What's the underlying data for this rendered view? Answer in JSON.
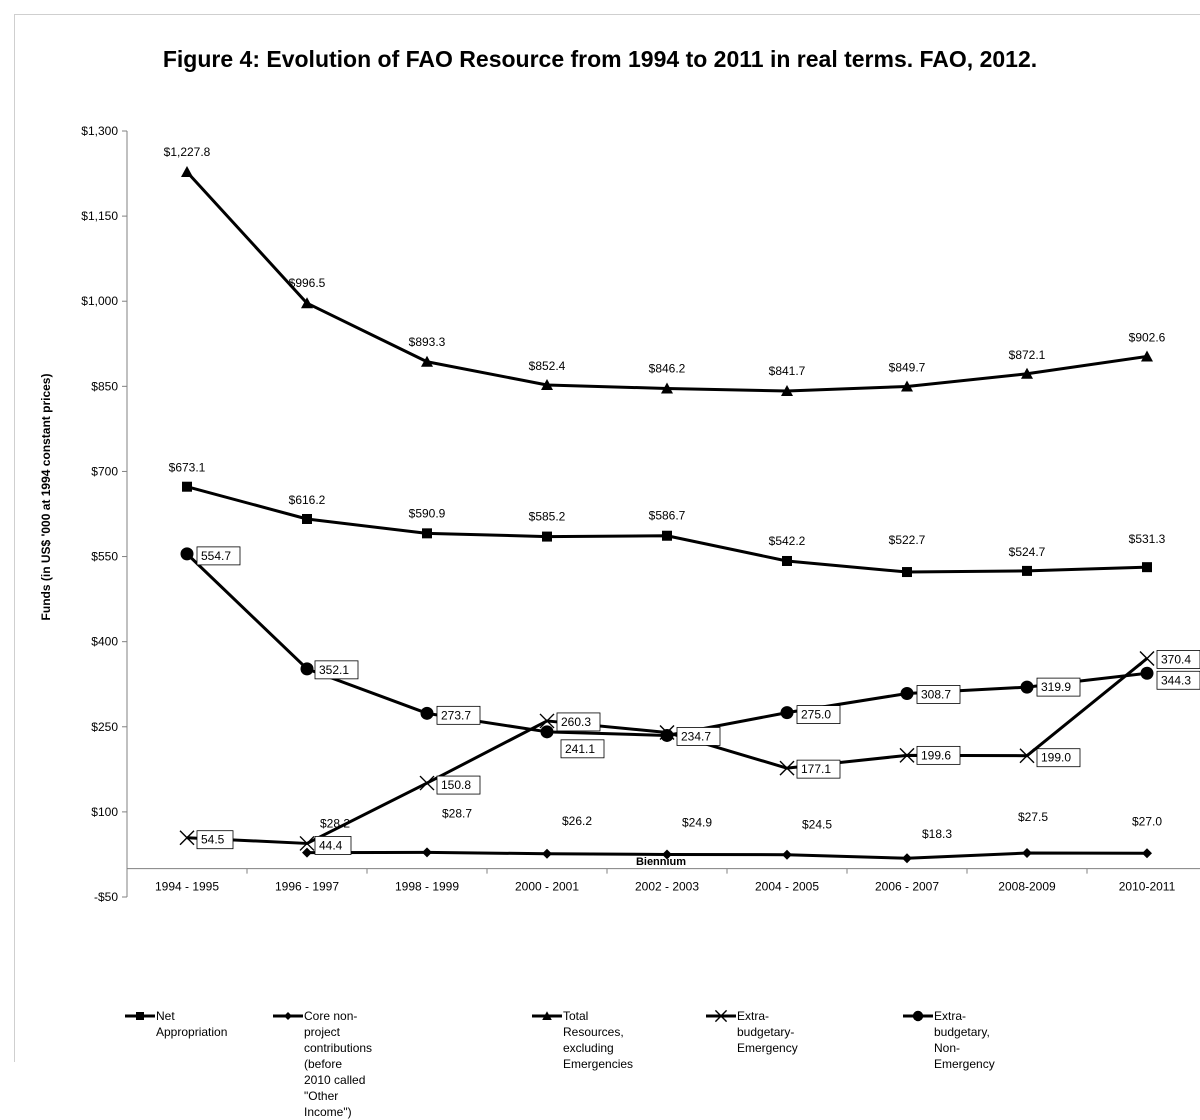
{
  "chart_data": {
    "type": "line",
    "title": "Figure 4: Evolution of FAO Resource from 1994 to 2011 in real terms. FAO, 2012.",
    "xlabel": "Biennium",
    "ylabel": "Funds (in US$ '000 at 1994 constant prices)",
    "ylim": [
      -50,
      1300
    ],
    "yticks": [
      -50,
      100,
      250,
      400,
      550,
      700,
      850,
      1000,
      1150,
      1300
    ],
    "ytick_labels": [
      "-$50",
      "$100",
      "$250",
      "$400",
      "$550",
      "$700",
      "$850",
      "$1,000",
      "$1,150",
      "$1,300"
    ],
    "categories": [
      "1994 - 1995",
      "1996 - 1997",
      "1998 - 1999",
      "2000 - 2001",
      "2002 - 2003",
      "2004 - 2005",
      "2006 - 2007",
      "2008-2009",
      "2010-2011"
    ],
    "grid": false,
    "legend_position": "bottom",
    "series": [
      {
        "name": "Net Appropriation",
        "marker": "square",
        "label_style": "plain",
        "values": [
          673.1,
          616.2,
          590.9,
          585.2,
          586.7,
          542.2,
          522.7,
          524.7,
          531.3
        ],
        "labels": [
          "$673.1",
          "$616.2",
          "$590.9",
          "$585.2",
          "$586.7",
          "$542.2",
          "$522.7",
          "$524.7",
          "$531.3"
        ]
      },
      {
        "name": "Core non-project contributions (before 2010 called \"Other Income\")",
        "marker": "diamond",
        "label_style": "plain",
        "values": [
          null,
          28.2,
          28.7,
          26.2,
          24.9,
          24.5,
          18.3,
          27.5,
          27.0
        ],
        "labels": [
          null,
          "$28.2",
          "$28.7",
          "$26.2",
          "$24.9",
          "$24.5",
          "$18.3",
          "$27.5",
          "$27.0"
        ]
      },
      {
        "name": "Total Resources, excluding Emergencies",
        "marker": "triangle",
        "label_style": "plain",
        "values": [
          1227.8,
          996.5,
          893.3,
          852.4,
          846.2,
          841.7,
          849.7,
          872.1,
          902.6
        ],
        "labels": [
          "$1,227.8",
          "$996.5",
          "$893.3",
          "$852.4",
          "$846.2",
          "$841.7",
          "$849.7",
          "$872.1",
          "$902.6"
        ]
      },
      {
        "name": "Extra-budgetary-Emergency",
        "marker": "x",
        "label_style": "boxed",
        "values": [
          54.5,
          44.4,
          150.8,
          260.3,
          240.0,
          177.1,
          199.6,
          199.0,
          370.4
        ],
        "labels": [
          "54.5",
          "44.4",
          "150.8",
          "260.3",
          "",
          "177.1",
          "199.6",
          "199.0",
          "370.4"
        ]
      },
      {
        "name": "Extra-budgetary, Non-Emergency",
        "marker": "circle",
        "label_style": "boxed",
        "values": [
          554.7,
          352.1,
          273.7,
          241.1,
          234.7,
          275.0,
          308.7,
          319.9,
          344.3
        ],
        "labels": [
          "554.7",
          "352.1",
          "273.7",
          "241.1",
          "234.7",
          "275.0",
          "308.7",
          "319.9",
          "344.3"
        ]
      }
    ]
  }
}
